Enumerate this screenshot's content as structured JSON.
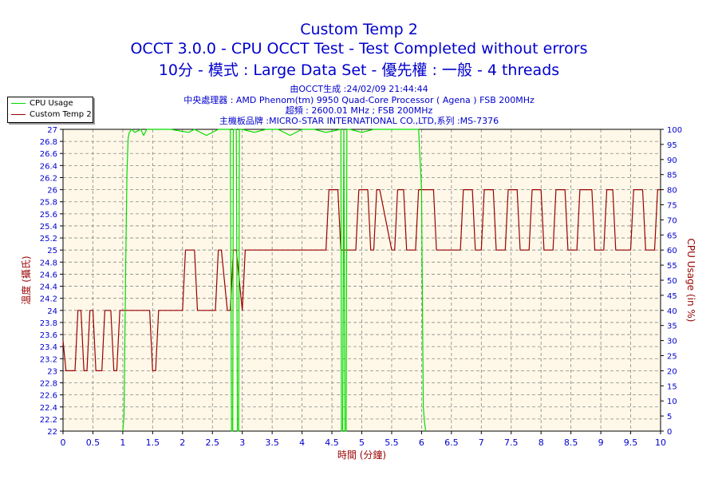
{
  "title": {
    "line1": "Custom Temp 2",
    "line2": "OCCT 3.0.0 - CPU OCCT Test - Test Completed without errors",
    "line3": "10分 - 模式 : Large Data Set - 優先權 : 一般 - 4 threads"
  },
  "info": {
    "line1": "由OCCT生成 :24/02/09 21:44:44",
    "line2": "中央處理器 : AMD Phenom(tm) 9950 Quad-Core Processor ( Agena ) FSB 200MHz",
    "line3": "超頻 : 2600.01 MHz ; FSB 200MHz",
    "line4": "主機板品牌 :MICRO-STAR INTERNATIONAL CO.,LTD,系列 :MS-7376"
  },
  "colors": {
    "plot_background": "#fff8e8",
    "temp_series": "#990000",
    "cpu_series": "#00dd00",
    "text": "#0000cc",
    "axis_label_red": "#990000"
  },
  "chart_data": {
    "type": "line",
    "xlabel": "時間 (分鐘)",
    "ylabel_left": "溫度 (攝氏)",
    "ylabel_right": "CPU Usage (in %)",
    "xlim": [
      0,
      10
    ],
    "ylim_left": [
      22,
      27
    ],
    "ylim_right": [
      0,
      100
    ],
    "grid": true,
    "legend_position": "top-left",
    "x_ticks": [
      "0",
      "0.5",
      "1",
      "1.5",
      "2",
      "2.5",
      "3",
      "3.5",
      "4",
      "4.5",
      "5",
      "5.5",
      "6",
      "6.5",
      "7",
      "7.5",
      "8",
      "8.5",
      "9",
      "9.5",
      "10"
    ],
    "y_left_ticks": [
      "22",
      "22.2",
      "22.4",
      "22.6",
      "22.8",
      "23",
      "23.2",
      "23.4",
      "23.6",
      "23.8",
      "24",
      "24.2",
      "24.4",
      "24.6",
      "24.8",
      "25",
      "25.2",
      "25.4",
      "25.6",
      "25.8",
      "26",
      "26.2",
      "26.4",
      "26.6",
      "26.8",
      "27"
    ],
    "y_right_ticks": [
      "0",
      "5",
      "10",
      "15",
      "20",
      "25",
      "30",
      "35",
      "40",
      "45",
      "50",
      "55",
      "60",
      "65",
      "70",
      "75",
      "80",
      "85",
      "90",
      "95",
      "100"
    ],
    "series": [
      {
        "name": "Custom Temp 2",
        "axis": "left",
        "x": [
          0,
          0.05,
          0.1,
          0.2,
          0.25,
          0.3,
          0.35,
          0.4,
          0.45,
          0.5,
          0.55,
          0.65,
          0.7,
          0.8,
          0.85,
          0.9,
          0.95,
          1,
          1.2,
          1.45,
          1.5,
          1.55,
          1.6,
          1.65,
          2,
          2.05,
          2.1,
          2.2,
          2.25,
          2.3,
          2.55,
          2.6,
          2.65,
          2.75,
          2.8,
          2.85,
          2.9,
          3.0,
          3.05,
          3.1,
          4.4,
          4.45,
          4.5,
          4.6,
          4.65,
          4.7,
          4.9,
          4.95,
          5.0,
          5.1,
          5.15,
          5.2,
          5.25,
          5.3,
          5.5,
          5.55,
          5.6,
          5.7,
          5.75,
          5.8,
          5.9,
          5.95,
          6.0,
          6.2,
          6.25,
          6.3,
          6.65,
          6.7,
          6.75,
          6.85,
          6.9,
          6.95,
          7.0,
          7.05,
          7.1,
          7.2,
          7.25,
          7.3,
          7.4,
          7.45,
          7.5,
          7.6,
          7.65,
          7.7,
          7.8,
          7.85,
          7.9,
          8.0,
          8.05,
          8.1,
          8.2,
          8.25,
          8.3,
          8.4,
          8.45,
          8.5,
          8.6,
          8.65,
          8.7,
          8.85,
          8.9,
          8.95,
          9.05,
          9.1,
          9.15,
          9.2,
          9.25,
          9.3,
          9.5,
          9.55,
          9.6,
          9.7,
          9.75,
          9.8,
          9.9,
          9.95,
          10
        ],
        "values": [
          23.5,
          23,
          23,
          23,
          24,
          24,
          23,
          23,
          24,
          24,
          23,
          23,
          24,
          24,
          23,
          23,
          24,
          24,
          24,
          24,
          23,
          23,
          24,
          24,
          24,
          25,
          25,
          25,
          24,
          24,
          24,
          25,
          25,
          24,
          24,
          25,
          25,
          24,
          25,
          25,
          25,
          26,
          26,
          26,
          25,
          25,
          25,
          26,
          26,
          26,
          25,
          25,
          26,
          26,
          25,
          25,
          26,
          26,
          25,
          25,
          25,
          26,
          26,
          26,
          25,
          25,
          25,
          26,
          26,
          26,
          25,
          25,
          25,
          26,
          26,
          26,
          25,
          25,
          25,
          26,
          26,
          26,
          25,
          25,
          25,
          26,
          26,
          26,
          25,
          25,
          25,
          26,
          26,
          26,
          25,
          25,
          25,
          26,
          26,
          26,
          25,
          25,
          25,
          26,
          26,
          26,
          25,
          25,
          25,
          26,
          26,
          26,
          25,
          25,
          25,
          26,
          26
        ]
      },
      {
        "name": "CPU Usage",
        "axis": "right",
        "x": [
          1.0,
          1.02,
          1.05,
          1.07,
          1.09,
          1.11,
          1.15,
          1.2,
          1.3,
          1.35,
          1.4,
          1.6,
          1.8,
          2.1,
          2.2,
          2.4,
          2.6,
          2.8,
          2.82,
          2.83,
          2.84,
          2.85,
          2.9,
          2.92,
          2.93,
          2.94,
          2.95,
          3.0,
          3.2,
          3.4,
          3.6,
          3.8,
          4.0,
          4.2,
          4.4,
          4.65,
          4.66,
          4.67,
          4.68,
          4.7,
          4.72,
          4.73,
          4.74,
          4.75,
          4.8,
          5.0,
          5.2,
          5.4,
          5.6,
          5.8,
          5.95,
          6.0,
          6.02,
          6.03,
          6.05,
          6.07
        ],
        "values": [
          0,
          5,
          55,
          85,
          97,
          99,
          100,
          99,
          100,
          98,
          100,
          100,
          100,
          99,
          100,
          98,
          100,
          100,
          0,
          0,
          0,
          100,
          100,
          0,
          0,
          0,
          100,
          100,
          99,
          100,
          100,
          98,
          100,
          100,
          99,
          100,
          0,
          0,
          0,
          100,
          0,
          0,
          0,
          100,
          100,
          99,
          100,
          100,
          100,
          100,
          100,
          80,
          30,
          8,
          3,
          0
        ]
      }
    ]
  }
}
